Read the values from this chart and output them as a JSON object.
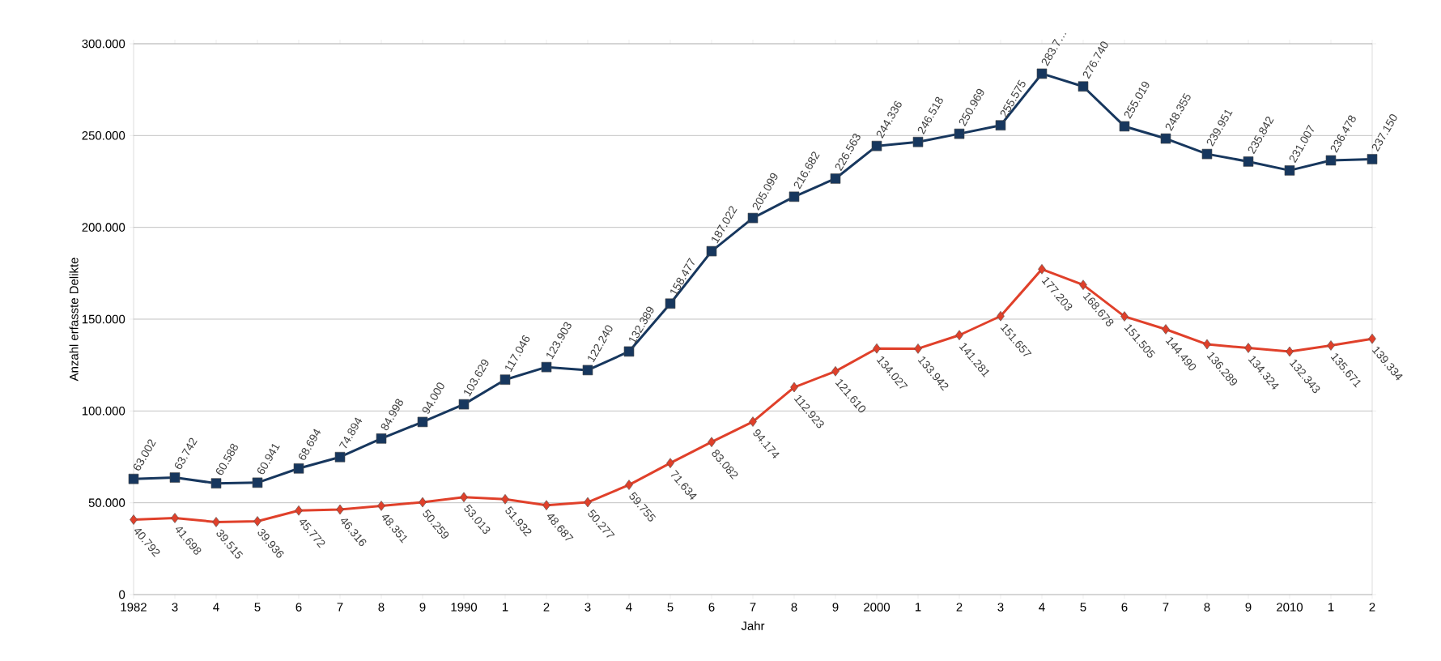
{
  "chart_data": {
    "type": "line",
    "xlabel": "Jahr",
    "ylabel": "Anzahl erfasste Delikte",
    "categories": [
      "1982",
      "3",
      "4",
      "5",
      "6",
      "7",
      "8",
      "9",
      "1990",
      "1",
      "2",
      "3",
      "4",
      "5",
      "6",
      "7",
      "8",
      "9",
      "2000",
      "1",
      "2",
      "3",
      "4",
      "5",
      "6",
      "7",
      "8",
      "9",
      "2010",
      "1",
      "2"
    ],
    "series": [
      {
        "color": "#17375e",
        "marker": "square",
        "values": [
          63.002,
          63.742,
          60.588,
          60.941,
          68.694,
          74.894,
          84.998,
          94.0,
          103.629,
          117.046,
          123.903,
          122.24,
          132.389,
          158.477,
          187.022,
          205.099,
          216.682,
          226.563,
          244.336,
          246.518,
          250.969,
          255.575,
          283.7,
          276.74,
          255.019,
          248.355,
          239.951,
          235.842,
          231.007,
          236.478,
          237.15
        ],
        "value_labels": [
          "63.002",
          "63.742",
          "60.588",
          "60.941",
          "68.694",
          "74.894",
          "84.998",
          "94.000",
          "103.629",
          "117.046",
          "123.903",
          "122.240",
          "132.389",
          "158.477",
          "187.022",
          "205.099",
          "216.682",
          "226.563",
          "244.336",
          "246.518",
          "250.969",
          "255.575",
          "283.7…",
          "276.740",
          "255.019",
          "248.355",
          "239.951",
          "235.842",
          "231.007",
          "236.478",
          "237.150"
        ]
      },
      {
        "color": "#e0402a",
        "marker": "diamond",
        "values": [
          40.792,
          41.698,
          39.515,
          39.936,
          45.772,
          46.316,
          48.351,
          50.259,
          53.013,
          51.932,
          48.687,
          50.277,
          59.755,
          71.634,
          83.082,
          94.174,
          112.923,
          121.61,
          134.027,
          133.942,
          141.281,
          151.657,
          177.203,
          168.678,
          151.505,
          144.49,
          136.289,
          134.324,
          132.343,
          135.671,
          139.334
        ],
        "value_labels": [
          "40.792",
          "41.698",
          "39.515",
          "39.936",
          "45.772",
          "46.316",
          "48.351",
          "50.259",
          "53.013",
          "51.932",
          "48.687",
          "50.277",
          "59.755",
          "71.634",
          "83.082",
          "94.174",
          "112.923",
          "121.610",
          "134.027",
          "133.942",
          "141.281",
          "151.657",
          "177.203",
          "168.678",
          "151.505",
          "144.490",
          "136.289",
          "134.324",
          "132.343",
          "135.671",
          "139.334"
        ]
      }
    ],
    "ylim": [
      0,
      300
    ],
    "yticks": [
      0,
      {
        "value": 50,
        "label": "50.000"
      },
      {
        "value": 100,
        "label": "100.000"
      },
      {
        "value": 150,
        "label": "150.000"
      },
      {
        "value": 200,
        "label": "200.000"
      },
      {
        "value": 250,
        "label": "250.000"
      },
      {
        "value": 300,
        "label": "300.000"
      }
    ],
    "grid": "y"
  }
}
